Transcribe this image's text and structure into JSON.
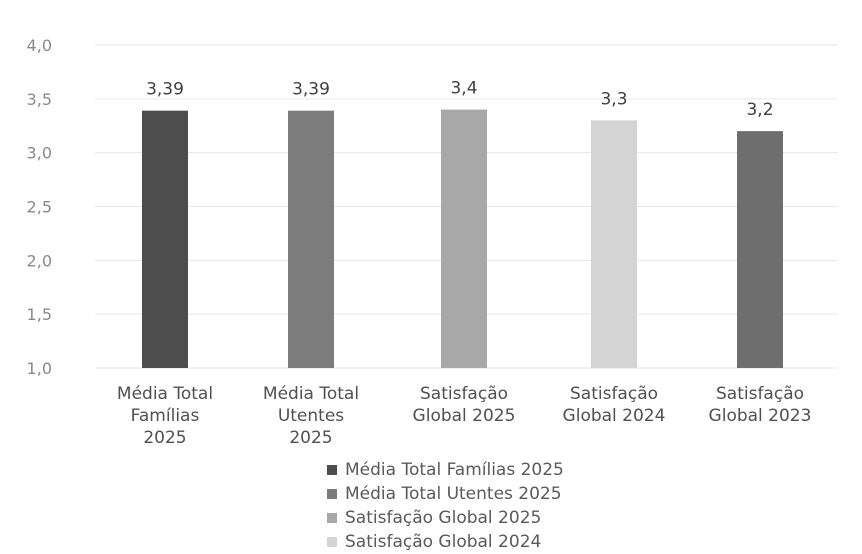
{
  "chart_data": {
    "type": "bar",
    "ylim": [
      1.0,
      4.0
    ],
    "yticks": [
      "4,0",
      "3,5",
      "3,0",
      "2,5",
      "2,0",
      "1,5",
      "1,0"
    ],
    "ytick_values": [
      4.0,
      3.5,
      3.0,
      2.5,
      2.0,
      1.5,
      1.0
    ],
    "grid": true,
    "categories": [
      [
        "Média Total",
        "Famílias",
        "2025"
      ],
      [
        "Média Total",
        "Utentes",
        "2025"
      ],
      [
        "Satisfação",
        "Global 2025"
      ],
      [
        "Satisfação",
        "Global 2024"
      ],
      [
        "Satisfação",
        "Global 2023"
      ]
    ],
    "values": [
      3.39,
      3.39,
      3.4,
      3.3,
      3.2
    ],
    "data_labels": [
      "3,39",
      "3,39",
      "3,4",
      "3,3",
      "3,2"
    ],
    "colors": [
      "#4d4d4d",
      "#7c7c7c",
      "#a8a8a8",
      "#d4d4d4",
      "#6e6e6e"
    ],
    "legend_position": "bottom",
    "legend": [
      {
        "label": "Média Total Famílias 2025",
        "color": "#4d4d4d"
      },
      {
        "label": "Média Total Utentes 2025",
        "color": "#7c7c7c"
      },
      {
        "label": "Satisfação Global 2025",
        "color": "#a8a8a8"
      },
      {
        "label": "Satisfação Global 2024",
        "color": "#d4d4d4"
      }
    ]
  }
}
